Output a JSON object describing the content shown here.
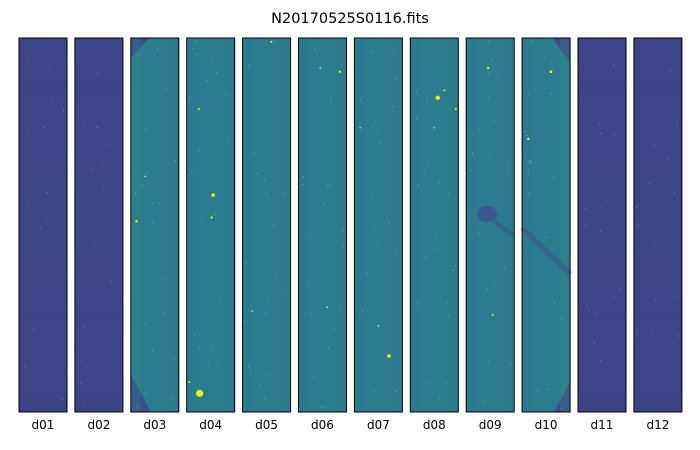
{
  "figure": {
    "title": "N20170525S0116.fits"
  },
  "colors": {
    "dark_panel": "#3d4487",
    "teal_panel": "#2a7b8e",
    "star": "#e6f51f",
    "frame": "#000000"
  },
  "panels": [
    {
      "id": "d01",
      "style": "dark"
    },
    {
      "id": "d02",
      "style": "dark"
    },
    {
      "id": "d03",
      "style": "teal"
    },
    {
      "id": "d04",
      "style": "teal"
    },
    {
      "id": "d05",
      "style": "teal"
    },
    {
      "id": "d06",
      "style": "teal"
    },
    {
      "id": "d07",
      "style": "teal"
    },
    {
      "id": "d08",
      "style": "teal"
    },
    {
      "id": "d09",
      "style": "teal"
    },
    {
      "id": "d10",
      "style": "teal"
    },
    {
      "id": "d11",
      "style": "dark"
    },
    {
      "id": "d12",
      "style": "dark"
    }
  ]
}
